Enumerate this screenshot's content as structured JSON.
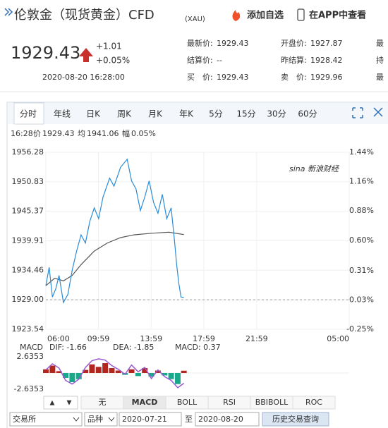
{
  "header": {
    "title": "伦敦金（现货黄金）CFD",
    "code": "(XAU)",
    "add_watch": "添加自选",
    "app": "在APP中查看"
  },
  "quote": {
    "price": "1929.43",
    "change": "+1.01",
    "change_pct": "+0.05%",
    "time": "2020-08-20 16:28:00"
  },
  "fields": [
    [
      {
        "label": "最新价:",
        "value": "1929.43"
      },
      {
        "label": "开盘价:",
        "value": "1927.87"
      },
      {
        "label": "最"
      }
    ],
    [
      {
        "label": "结算价:",
        "value": "--"
      },
      {
        "label": "昨结算:",
        "value": "1928.42"
      },
      {
        "label": "持"
      }
    ],
    [
      {
        "label": "买　价:",
        "value": "1929.43"
      },
      {
        "label": "卖　价:",
        "value": "1929.96"
      },
      {
        "label": "最"
      }
    ]
  ],
  "tabs": [
    "分时",
    "年线",
    "日K",
    "周K",
    "月K",
    "年K",
    "5分",
    "15分",
    "30分",
    "60分"
  ],
  "info": {
    "time": "16:28",
    "price_label": "价",
    "price": "1929.43",
    "avg_label": "均",
    "avg": "1941.06",
    "amp_label": "幅",
    "amp": "0.05%"
  },
  "watermark": "sina 新浪财经",
  "price_chart": {
    "ylim": [
      1923.54,
      1956.28
    ],
    "yticks": [
      1956.28,
      1950.83,
      1945.37,
      1939.91,
      1934.46,
      {
        "value": 1929,
        "label": "1929.00"
      },
      1923.54
    ],
    "y2lim": [
      -0.25,
      1.44
    ],
    "y2ticks": [
      {
        "value": 1.44,
        "label": "1.44%"
      },
      {
        "value": 1.16,
        "label": "1.16%"
      },
      {
        "value": 0.88,
        "label": "0.88%"
      },
      {
        "value": 0.6,
        "label": "0.60%"
      },
      {
        "value": 0.31,
        "label": "0.31%"
      },
      {
        "value": 0.03,
        "label": "0.03%"
      },
      {
        "value": -0.25,
        "label": "-0.25%"
      }
    ],
    "xlim": [
      0,
      1380
    ],
    "xticks": [
      {
        "value": 0,
        "label": "06:00"
      },
      {
        "value": 239,
        "label": "09:59"
      },
      {
        "value": 479,
        "label": "13:59"
      },
      {
        "value": 719,
        "label": "17:59"
      },
      {
        "value": 959,
        "label": "21:59"
      },
      {
        "value": 1380,
        "label": "05:00"
      }
    ],
    "x": [
      0,
      15,
      30,
      45,
      60,
      80,
      100,
      120,
      140,
      160,
      180,
      200,
      220,
      240,
      260,
      290,
      310,
      340,
      370,
      390,
      410,
      430,
      450,
      470,
      490,
      510,
      530,
      550,
      570,
      585,
      595,
      605,
      615,
      628
    ],
    "price": [
      1931.6,
      1935.0,
      1929.5,
      1931.0,
      1933.5,
      1928.5,
      1930.0,
      1934.5,
      1938.0,
      1941.0,
      1939.5,
      1943.5,
      1946.0,
      1944.0,
      1948.0,
      1951.5,
      1950.0,
      1953.5,
      1955.0,
      1951.0,
      1949.5,
      1945.5,
      1948.0,
      1951.0,
      1947.0,
      1945.0,
      1948.5,
      1944.0,
      1946.0,
      1940.0,
      1935.5,
      1932.0,
      1929.5,
      1929.43
    ],
    "average_x": [
      0,
      40,
      80,
      120,
      160,
      220,
      280,
      340,
      400,
      480,
      560,
      628
    ],
    "average": [
      1931.6,
      1933.0,
      1932.5,
      1933.5,
      1935.5,
      1938.0,
      1939.5,
      1940.5,
      1941.0,
      1941.3,
      1941.5,
      1941.06
    ],
    "base": 1929
  },
  "macd_chart": {
    "label": "MACD",
    "dif": "DIF: -1.66",
    "dea": "DEA: -1.85",
    "macd": "MACD: 0.37",
    "ylim": [
      -2.6353,
      2.6353
    ],
    "yticks": [
      2.6353,
      -2.6353
    ],
    "x": [
      0,
      30,
      60,
      90,
      120,
      150,
      180,
      210,
      240,
      270,
      300,
      330,
      360,
      390,
      420,
      450,
      480,
      510,
      540,
      570,
      600,
      628
    ],
    "histogram": [
      0.6,
      1.2,
      0.3,
      -0.8,
      -1.5,
      -1.0,
      0.5,
      1.4,
      1.0,
      1.6,
      0.8,
      0.4,
      -0.3,
      0.6,
      -0.5,
      0.8,
      -0.6,
      0.4,
      -0.4,
      -1.0,
      -1.8,
      0.37
    ],
    "dif_line": [
      0.5,
      1.5,
      0.8,
      -1.2,
      -1.8,
      -1.0,
      0.9,
      2.0,
      2.3,
      2.1,
      1.2,
      0.6,
      -0.2,
      1.3,
      0.2,
      0.9,
      -0.9,
      0.5,
      -0.6,
      -1.2,
      -2.4,
      -1.66
    ]
  },
  "controls": {
    "up": "▲",
    "down": "▼",
    "buttons": [
      "无",
      "MACD",
      "BOLL",
      "RSI",
      "BBIBOLL",
      "ROC"
    ],
    "selected": 1
  },
  "footer": {
    "exchange": "交易所",
    "variety": "品种",
    "start": "2020-07-21",
    "to": "至",
    "end": "2020-08-20",
    "query": "历史交易查询"
  }
}
